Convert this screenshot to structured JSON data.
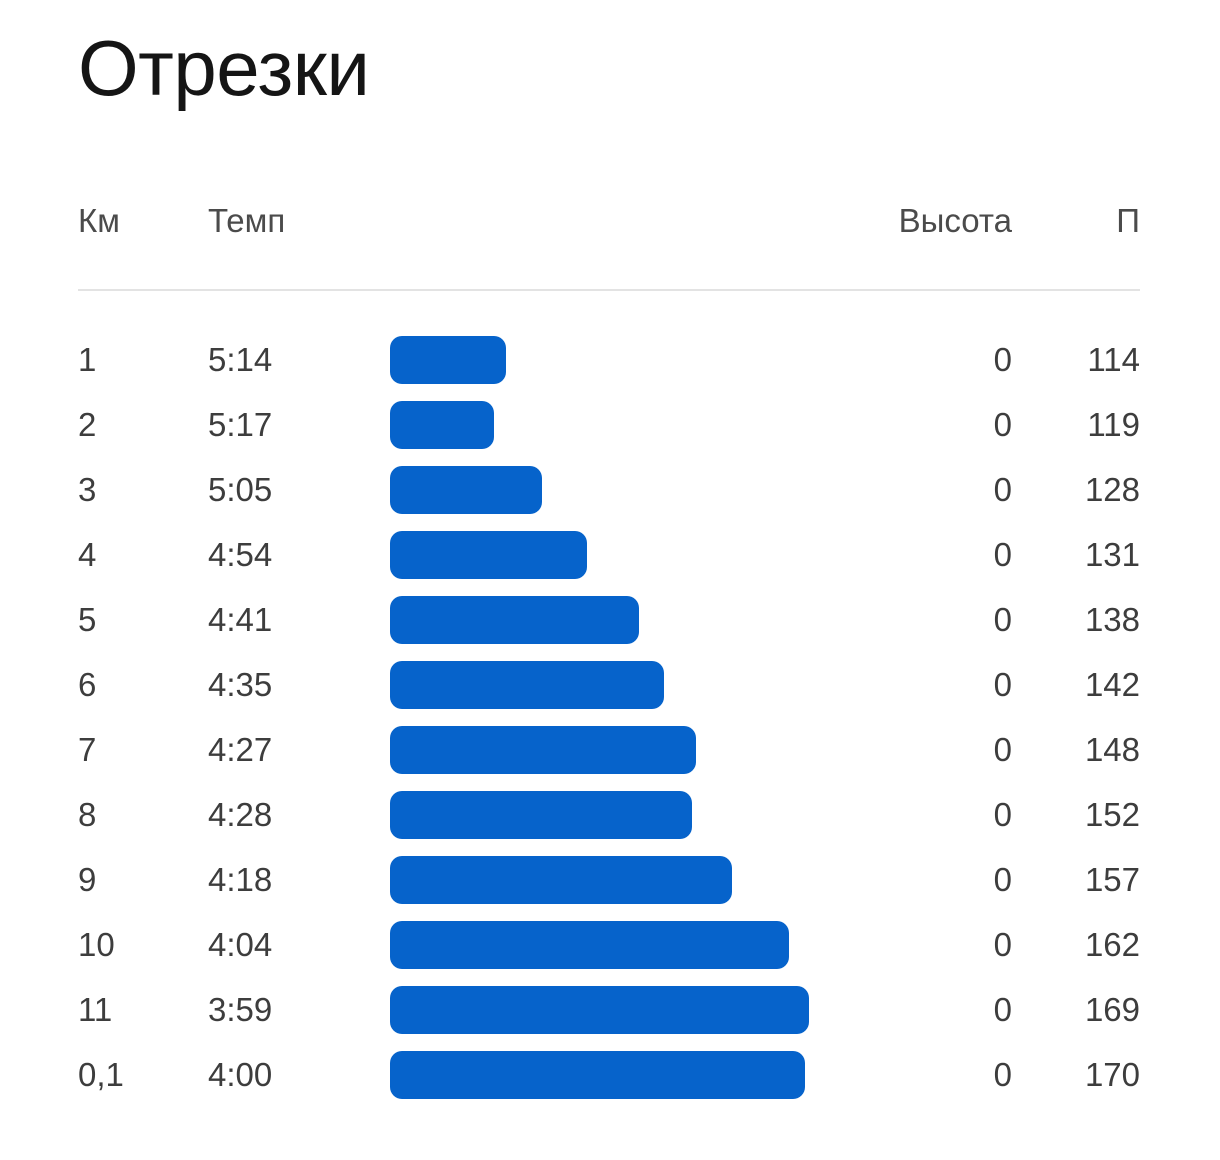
{
  "page": {
    "title": "Отрезки"
  },
  "table": {
    "headers": {
      "km": "Км",
      "pace": "Темп",
      "elevation": "Высота",
      "pulse": "П"
    }
  },
  "chart_data": {
    "type": "bar",
    "orientation": "horizontal",
    "title": "Отрезки",
    "categories": [
      "1",
      "2",
      "3",
      "4",
      "5",
      "6",
      "7",
      "8",
      "9",
      "10",
      "11",
      "0,1"
    ],
    "series": [
      {
        "name": "Темп",
        "values": [
          "5:14",
          "5:17",
          "5:05",
          "4:54",
          "4:41",
          "4:35",
          "4:27",
          "4:28",
          "4:18",
          "4:04",
          "3:59",
          "4:00"
        ]
      },
      {
        "name": "Высота",
        "values": [
          0,
          0,
          0,
          0,
          0,
          0,
          0,
          0,
          0,
          0,
          0,
          0
        ]
      },
      {
        "name": "П",
        "values": [
          114,
          119,
          128,
          131,
          138,
          142,
          148,
          152,
          157,
          162,
          169,
          170
        ]
      }
    ],
    "bar_color": "#0663cb",
    "legend": "none",
    "grid": "off",
    "value_encoding": "bar length encodes pace; faster pace gives longer bar"
  }
}
